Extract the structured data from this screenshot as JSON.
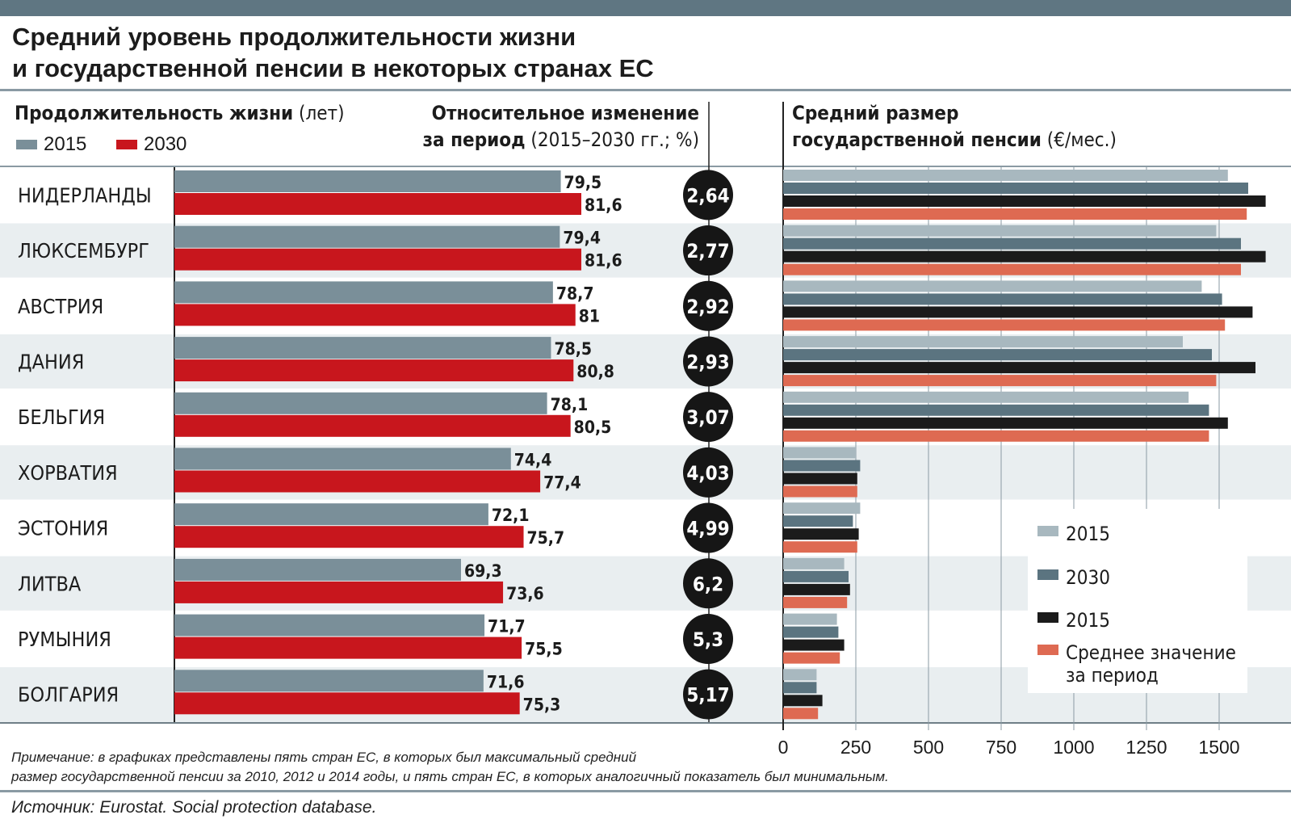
{
  "title_lines": [
    "Средний уровень продолжительности жизни",
    "и государственной пенсии в некоторых странах ЕС"
  ],
  "header_life": {
    "bold": "Продолжительность жизни",
    "rest": " (лет)"
  },
  "header_change": {
    "line1": "Относительное изменение",
    "line2_bold": "за период",
    "line2_rest": " (2015–2030 гг.; %)"
  },
  "header_pension": {
    "line1": "Средний размер",
    "line2_bold": "государственной пенсии",
    "line2_rest": " (€/мес.)"
  },
  "legend_life": [
    {
      "label": "2015",
      "color": "#7a8f99"
    },
    {
      "label": "2030",
      "color": "#c8161d"
    }
  ],
  "note_lines": [
    "Примечание: в графиках представлены пять стран ЕС, в которых был максимальный средний",
    "размер государственной пенсии за 2010, 2012 и 2014 годы, и пять стран ЕС, в которых аналогичный показатель был минимальным."
  ],
  "source": "Источник: Eurostat. Social protection database.",
  "chart_data": [
    {
      "type": "bar",
      "orientation": "horizontal",
      "title": "Продолжительность жизни (лет)",
      "categories": [
        "НИДЕРЛАНДЫ",
        "ЛЮКСЕМБУРГ",
        "АВСТРИЯ",
        "ДАНИЯ",
        "БЕЛЬГИЯ",
        "ХОРВАТИЯ",
        "ЭСТОНИЯ",
        "ЛИТВА",
        "РУМЫНИЯ",
        "БОЛГАРИЯ"
      ],
      "series": [
        {
          "name": "2015",
          "color": "#7a8f99",
          "values": [
            79.5,
            79.4,
            78.7,
            78.5,
            78.1,
            74.4,
            72.1,
            69.3,
            71.7,
            71.6
          ],
          "labels": [
            "79,5",
            "79,4",
            "78,7",
            "78,5",
            "78,1",
            "74,4",
            "72,1",
            "69,3",
            "71,7",
            "71,6"
          ]
        },
        {
          "name": "2030",
          "color": "#c8161d",
          "values": [
            81.6,
            81.6,
            81,
            80.8,
            80.5,
            77.4,
            75.7,
            73.6,
            75.5,
            75.3
          ],
          "labels": [
            "81,6",
            "81,6",
            "81",
            "80,8",
            "80,5",
            "77,4",
            "75,7",
            "73,6",
            "75,5",
            "75,3"
          ]
        }
      ],
      "legend_position": "top-left"
    },
    {
      "type": "table",
      "title": "Относительное изменение за период (2015–2030 гг.; %)",
      "values": [
        2.64,
        2.77,
        2.92,
        2.93,
        3.07,
        4.03,
        4.99,
        6.2,
        5.3,
        5.17
      ],
      "labels": [
        "2,64",
        "2,77",
        "2,92",
        "2,93",
        "3,07",
        "4,03",
        "4,99",
        "6,2",
        "5,3",
        "5,17"
      ]
    },
    {
      "type": "bar",
      "orientation": "horizontal",
      "title": "Средний размер государственной пенсии (€/мес.)",
      "xlim": [
        0,
        1660
      ],
      "x_ticks": [
        0,
        250,
        500,
        750,
        1000,
        1250,
        1500
      ],
      "grid": true,
      "legend_position": "bottom-right",
      "series": [
        {
          "name": "2015",
          "color": "#a8b8bf",
          "values": [
            1530,
            1490,
            1440,
            1375,
            1395,
            250,
            265,
            210,
            185,
            115
          ]
        },
        {
          "name": "2030",
          "color": "#5b7480",
          "values": [
            1600,
            1575,
            1510,
            1475,
            1465,
            265,
            240,
            225,
            190,
            115
          ]
        },
        {
          "name": "2015",
          "color": "#1b1b1b",
          "values": [
            1660,
            1660,
            1615,
            1625,
            1530,
            255,
            260,
            230,
            210,
            135
          ]
        },
        {
          "name": "Среднее значение за период",
          "color": "#de6a52",
          "values": [
            1595,
            1575,
            1520,
            1490,
            1465,
            255,
            255,
            220,
            195,
            120
          ]
        }
      ]
    }
  ]
}
